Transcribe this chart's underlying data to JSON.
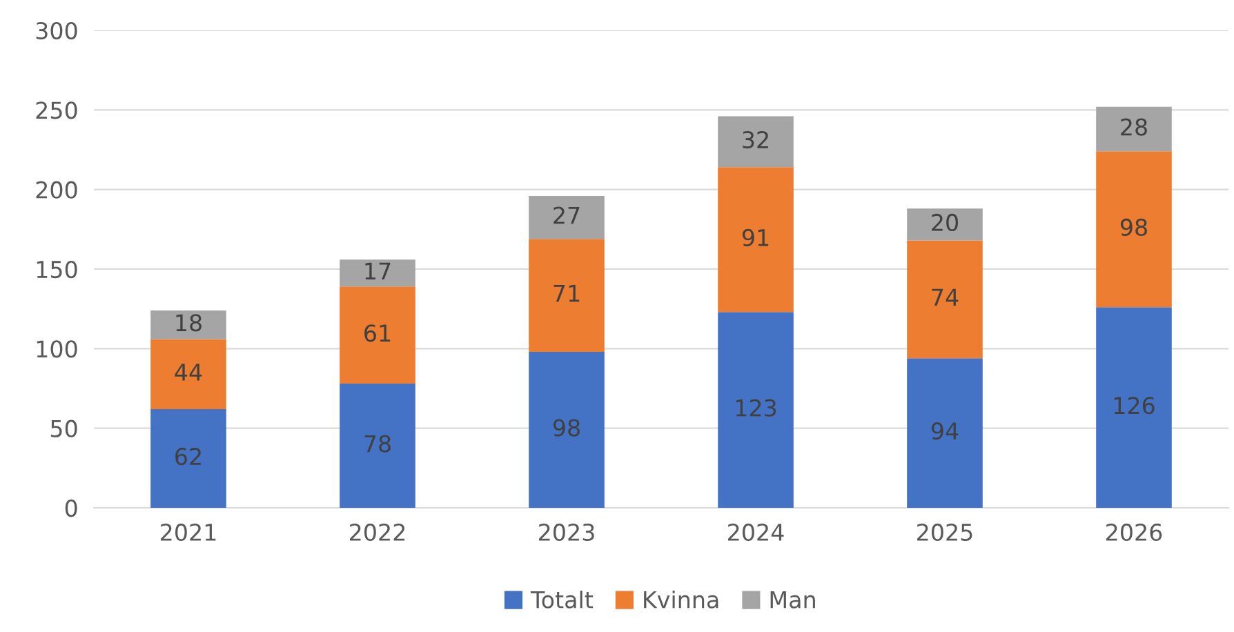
{
  "chart_data": {
    "type": "bar",
    "stacked": true,
    "categories": [
      "2021",
      "2022",
      "2023",
      "2024",
      "2025",
      "2026"
    ],
    "series": [
      {
        "name": "Totalt",
        "color": "#4472c4",
        "values": [
          62,
          78,
          98,
          123,
          94,
          126
        ]
      },
      {
        "name": "Kvinna",
        "color": "#ed7d31",
        "values": [
          44,
          61,
          71,
          91,
          74,
          98
        ]
      },
      {
        "name": "Man",
        "color": "#a5a5a5",
        "values": [
          18,
          17,
          27,
          32,
          20,
          28
        ]
      }
    ],
    "ylim": [
      0,
      300
    ],
    "yticks": [
      0,
      50,
      100,
      150,
      200,
      250,
      300
    ],
    "grid": "y",
    "legend": "bottom",
    "data_labels": true
  }
}
